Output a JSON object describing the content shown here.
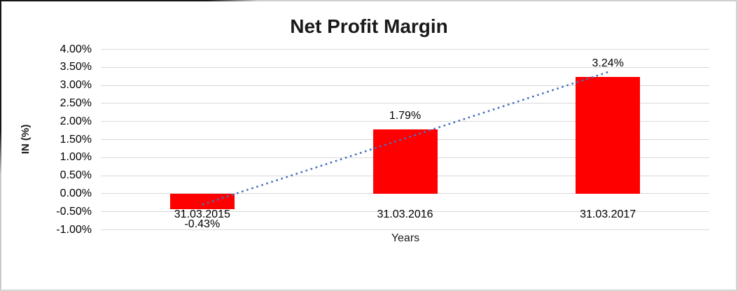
{
  "chart_data": {
    "type": "bar",
    "title": "Net Profit Margin",
    "xlabel": "Years",
    "ylabel": "IN (%)",
    "categories": [
      "31.03.2015",
      "31.03.2016",
      "31.03.2017"
    ],
    "values": [
      -0.43,
      1.79,
      3.24
    ],
    "data_labels": [
      "-0.43%",
      "1.79%",
      "3.24%"
    ],
    "ylim": [
      -1,
      4
    ],
    "ytick_step": 0.5,
    "ytick_labels": [
      "4.00%",
      "3.50%",
      "3.00%",
      "2.50%",
      "2.00%",
      "1.50%",
      "1.00%",
      "0.50%",
      "0.00%",
      "-0.50%",
      "-1.00%"
    ],
    "grid": true,
    "legend": "none",
    "bar_color": "#FF0000",
    "gridline_color": "#D9D9D9",
    "text_color": "#000000",
    "trendline": {
      "type": "linear",
      "style": "dotted",
      "color": "#4472C4"
    }
  }
}
